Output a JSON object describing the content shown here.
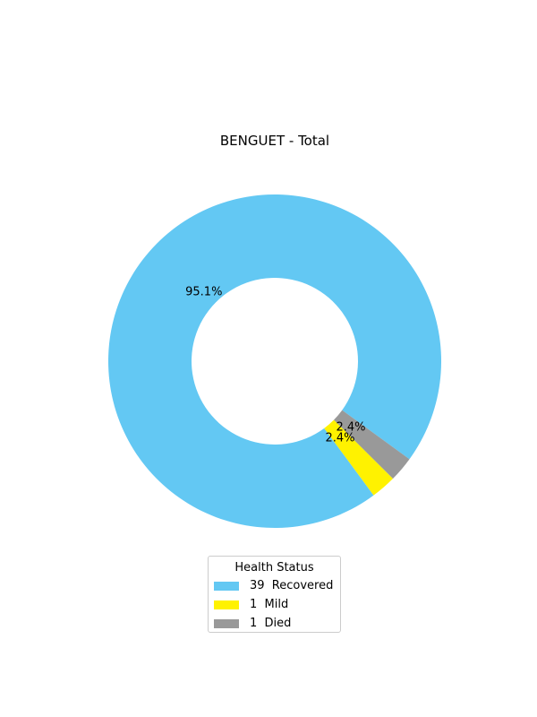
{
  "chart_data": {
    "type": "pie",
    "title": "BENGUET - Total",
    "legend_title": "Health Status",
    "legend_position": "bottom-center",
    "slices": [
      {
        "label": "39  Recovered",
        "value": 39,
        "pct_label": "95.1%",
        "color": "#63c8f3"
      },
      {
        "label": "1  Mild",
        "value": 1,
        "pct_label": "2.4%",
        "color": "#fff200"
      },
      {
        "label": "1  Died",
        "value": 1,
        "pct_label": "2.4%",
        "color": "#999999"
      }
    ]
  }
}
